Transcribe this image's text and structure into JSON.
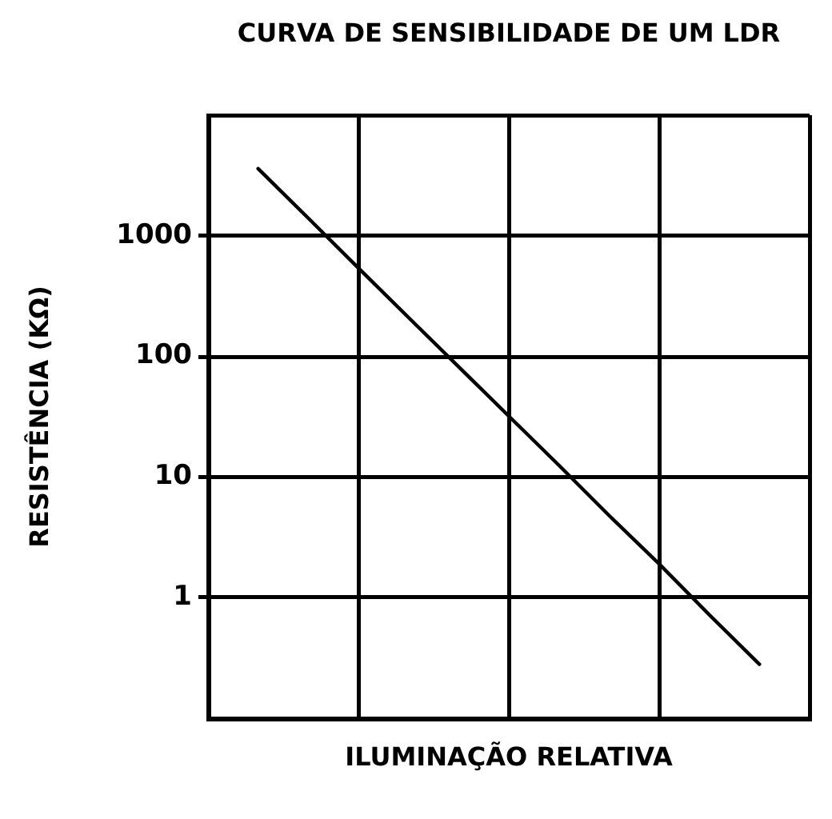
{
  "chart_data": {
    "type": "line",
    "title": "CURVA DE SENSIBILIDADE DE UM LDR",
    "xlabel": "ILUMINAÇÃO RELATIVA",
    "ylabel": "RESISTÊNCIA (KΩ)",
    "categories": [
      null,
      null,
      null,
      null,
      null,
      null,
      null,
      null,
      null,
      null,
      null,
      null,
      null
    ],
    "series": [
      {
        "color": "#000000",
        "values": [
          null,
          3600,
          1400,
          540,
          210,
          82,
          32,
          12.5,
          4.8,
          1.9,
          0.72,
          0.28,
          null
        ]
      }
    ],
    "log": true,
    "ylim": [
      0.1,
      10000
    ],
    "yticks": [
      {
        "value": 0.1,
        "label": null
      },
      1,
      10,
      100,
      1000,
      {
        "value": 10000,
        "label": null
      }
    ],
    "grid": true,
    "tick_labels": "y"
  }
}
